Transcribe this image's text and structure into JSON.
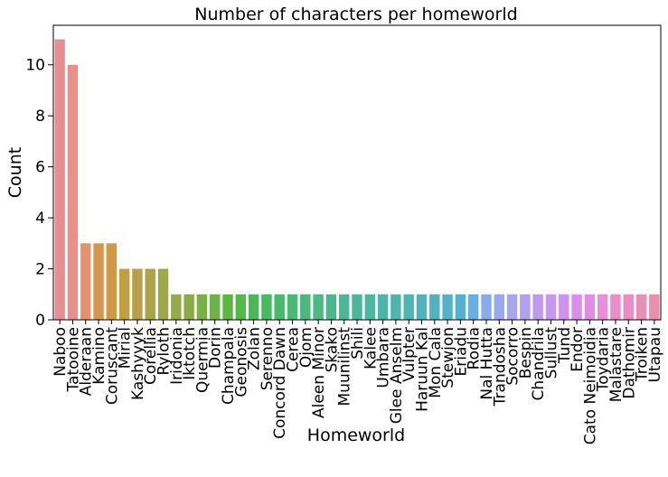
{
  "chart_data": {
    "type": "bar",
    "title": "Number of characters per homeworld",
    "xlabel": "Homeworld",
    "ylabel": "Count",
    "ylim": [
      0,
      11.55
    ],
    "yticks": [
      0,
      2,
      4,
      6,
      8,
      10
    ],
    "grid": false,
    "categories": [
      "Naboo",
      "Tatooine",
      "Alderaan",
      "Kamino",
      "Coruscant",
      "Mirial",
      "Kashyyyk",
      "Corellia",
      "Ryloth",
      "Iridonia",
      "Iktotch",
      "Quermia",
      "Dorin",
      "Champala",
      "Geonosis",
      "Zolan",
      "Serenno",
      "Concord Dawn",
      "Cerea",
      "Ojom",
      "Aleen Minor",
      "Skako",
      "Muunilinst",
      "Shili",
      "Kalee",
      "Umbara",
      "Glee Anselm",
      "Vulpter",
      "Haruun Kal",
      "Mon Cala",
      "Stewjon",
      "Eriadu",
      "Rodia",
      "Nal Hutta",
      "Trandosha",
      "Socorro",
      "Bespin",
      "Chandrila",
      "Sullust",
      "Tund",
      "Endor",
      "Cato Neimoidia",
      "Toydaria",
      "Malastare",
      "Dathomir",
      "Troiken",
      "Utapau"
    ],
    "values": [
      11,
      10,
      3,
      3,
      3,
      2,
      2,
      2,
      2,
      1,
      1,
      1,
      1,
      1,
      1,
      1,
      1,
      1,
      1,
      1,
      1,
      1,
      1,
      1,
      1,
      1,
      1,
      1,
      1,
      1,
      1,
      1,
      1,
      1,
      1,
      1,
      1,
      1,
      1,
      1,
      1,
      1,
      1,
      1,
      1,
      1,
      1
    ],
    "colors": [
      "#ea8e96",
      "#e99088",
      "#e2936f",
      "#d6964f",
      "#d19847",
      "#c29d48",
      "#b7a048",
      "#aba448",
      "#a0a748",
      "#95aa48",
      "#88ad47",
      "#79b047",
      "#6db347",
      "#5eb646",
      "#51b946",
      "#48b955",
      "#48b961",
      "#49b96c",
      "#4ab976",
      "#4ab87e",
      "#4bb886",
      "#4bb78d",
      "#4cb794",
      "#4cb69a",
      "#4db6a1",
      "#4db5a7",
      "#4eb5ad",
      "#4fb4b4",
      "#50b3bb",
      "#51b2c2",
      "#53b1ca",
      "#55afd3",
      "#6aaee1",
      "#88acea",
      "#9aa8ee",
      "#a8a5ef",
      "#b39fef",
      "#bd9bf0",
      "#c697f0",
      "#d192ee",
      "#da8eeb",
      "#e38ce6",
      "#e88cdb",
      "#ea8dcf",
      "#ea8ec4",
      "#ea8eb8",
      "#ea8fad"
    ]
  }
}
